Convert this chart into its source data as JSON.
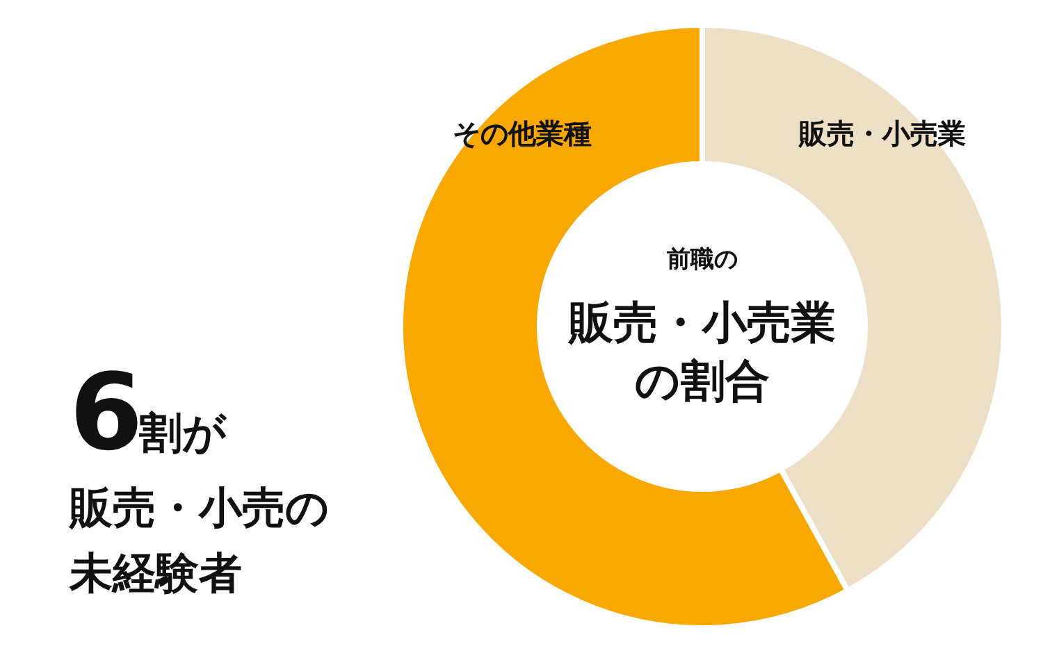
{
  "chart_data": {
    "type": "donut",
    "subtitle": "前職の",
    "title": "販売・小売業の割合",
    "categories": [
      "販売・小売業",
      "その他業種"
    ],
    "values": [
      42,
      58
    ],
    "colors": [
      "#ede0c7",
      "#f8a800"
    ],
    "annotations": [
      "6",
      "割が",
      "販売・小売の",
      "未経験者"
    ]
  }
}
